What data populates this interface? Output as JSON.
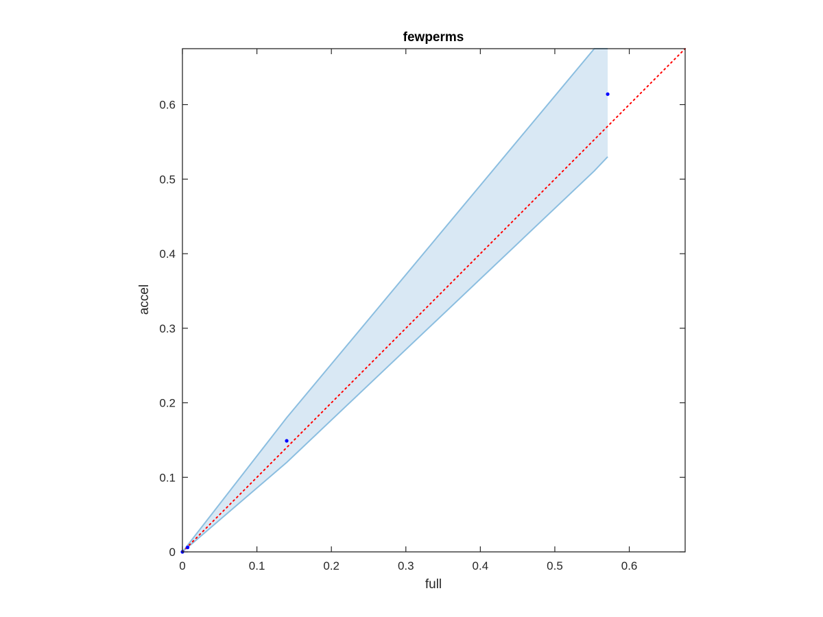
{
  "chart_data": {
    "type": "scatter",
    "title": "fewperms",
    "xlabel": "full",
    "ylabel": "accel",
    "xlim": [
      0,
      0.675
    ],
    "ylim": [
      0,
      0.675
    ],
    "xticks": [
      0,
      0.1,
      0.2,
      0.3,
      0.4,
      0.5,
      0.6
    ],
    "yticks": [
      0,
      0.1,
      0.2,
      0.3,
      0.4,
      0.5,
      0.6
    ],
    "xtick_labels": [
      "0",
      "0.1",
      "0.2",
      "0.3",
      "0.4",
      "0.5",
      "0.6"
    ],
    "ytick_labels": [
      "0",
      "0.1",
      "0.2",
      "0.3",
      "0.4",
      "0.5",
      "0.6"
    ],
    "grid": false,
    "points": {
      "x": [
        0,
        0.007,
        0.14,
        0.571
      ],
      "y": [
        0,
        0.006,
        0.149,
        0.614
      ],
      "color": "#0000ff"
    },
    "band": {
      "x": [
        0,
        0.14,
        0.553,
        0.571
      ],
      "upper": [
        0,
        0.18,
        0.675,
        0.675
      ],
      "lower": [
        0,
        0.12,
        0.511,
        0.53
      ],
      "fill_color": "#d9e8f4",
      "line_color": "#8bbee0"
    },
    "reference_line": {
      "x": [
        0,
        0.675
      ],
      "y": [
        0,
        0.675
      ],
      "color": "#ff0000",
      "style": "dotted"
    }
  }
}
